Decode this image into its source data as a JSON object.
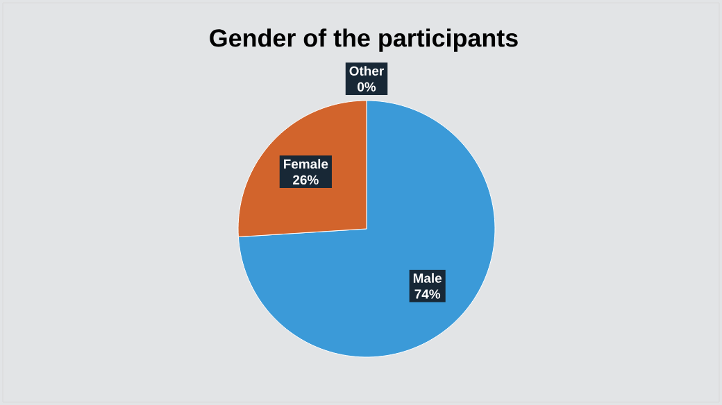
{
  "chart_data": {
    "type": "pie",
    "title": "Gender of the participants",
    "categories": [
      "Male",
      "Female",
      "Other"
    ],
    "values": [
      74,
      26,
      0
    ],
    "value_labels": [
      "74%",
      "26%",
      "0%"
    ],
    "colors": [
      "#3b9ad8",
      "#d2642c",
      "#a5a5a5"
    ]
  }
}
